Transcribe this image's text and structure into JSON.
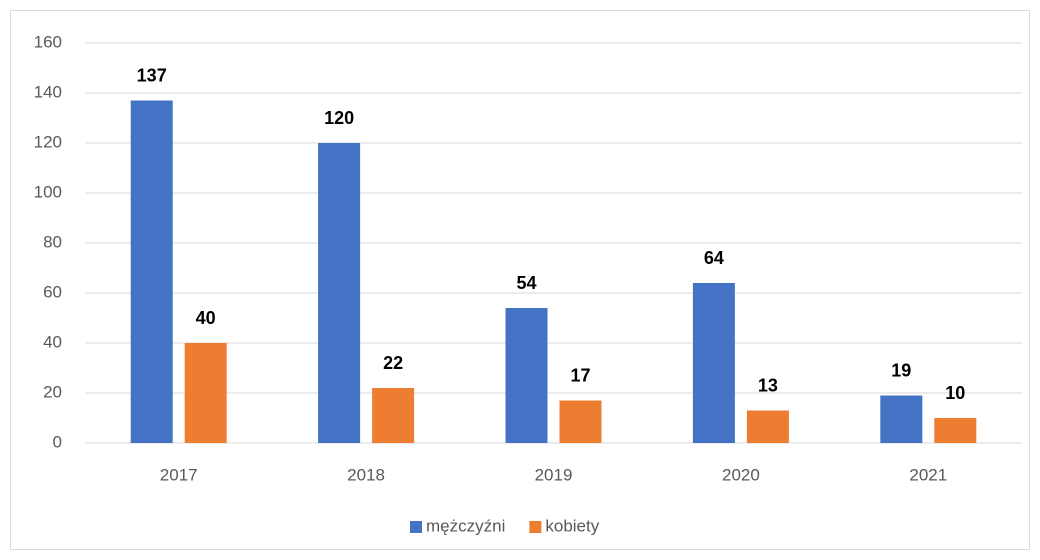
{
  "chart_data": {
    "type": "bar",
    "categories": [
      "2017",
      "2018",
      "2019",
      "2020",
      "2021"
    ],
    "series": [
      {
        "name": "mężczyźni",
        "color": "#4472c4",
        "values": [
          137,
          120,
          54,
          64,
          19
        ]
      },
      {
        "name": "kobiety",
        "color": "#ed7d31",
        "values": [
          40,
          22,
          17,
          13,
          10
        ]
      }
    ],
    "ylim": [
      0,
      160
    ],
    "yticks": [
      0,
      20,
      40,
      60,
      80,
      100,
      120,
      140,
      160
    ],
    "grid": true,
    "legend": "bottom"
  }
}
